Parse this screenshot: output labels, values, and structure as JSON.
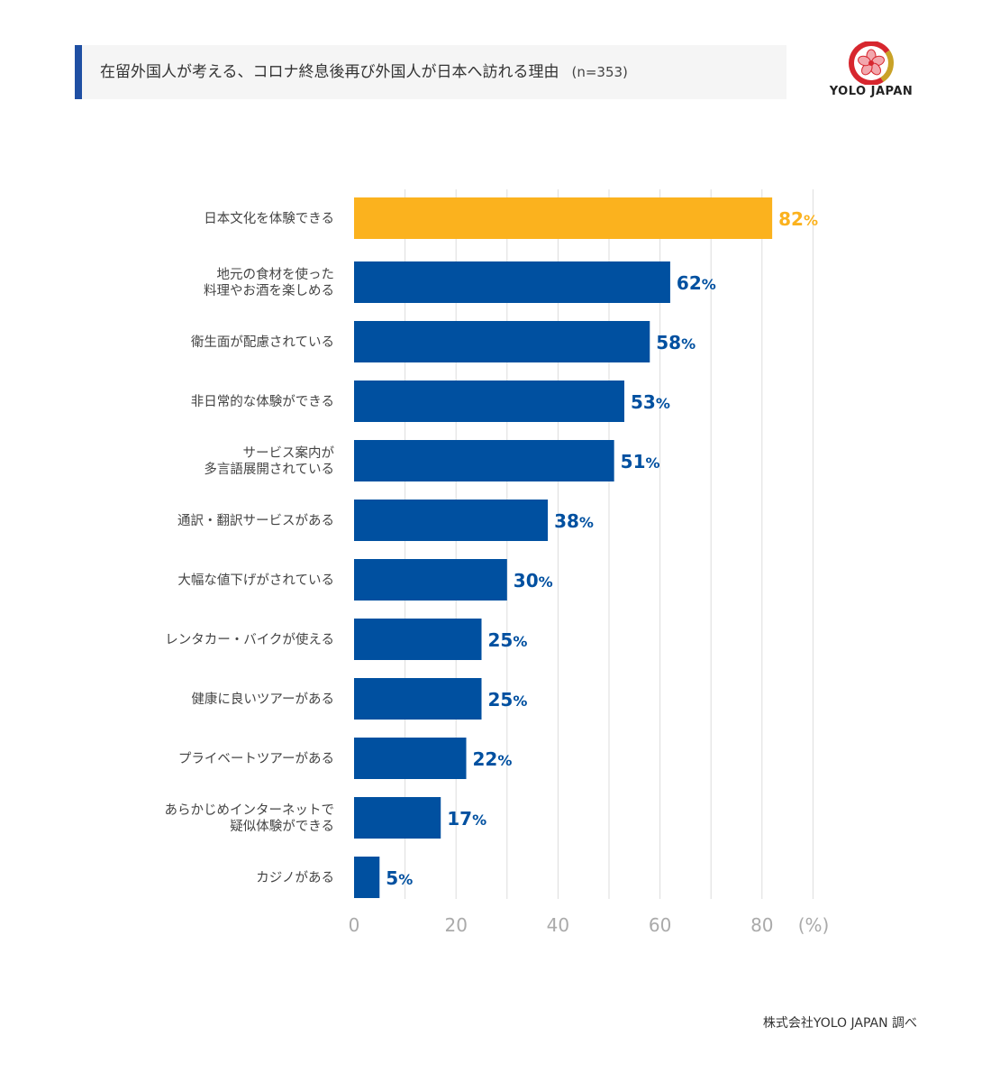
{
  "header": {
    "title": "在留外国人が考える、コロナ終息後再び外国人が日本へ訪れる理由",
    "note": "(n=353)"
  },
  "logo": {
    "text": "YOLO JAPAN",
    "icon": "cherry-blossom-circle-icon"
  },
  "footer": {
    "source": "株式会社YOLO JAPAN 調べ"
  },
  "colors": {
    "highlight": "#FBB21E",
    "bar": "#0050A0",
    "grid": "#dddddd",
    "tick": "#aaaaaa",
    "label": "#444444"
  },
  "chart_data": {
    "type": "bar",
    "orientation": "horizontal",
    "categories": [
      "日本文化を体験できる",
      "地元の食材を使った\n料理やお酒を楽しめる",
      "衛生面が配慮されている",
      "非日常的な体験ができる",
      "サービス案内が\n多言語展開されている",
      "通訳・翻訳サービスがある",
      "大幅な値下げがされている",
      "レンタカー・バイクが使える",
      "健康に良いツアーがある",
      "プライベートツアーがある",
      "あらかじめインターネットで\n疑似体験ができる",
      "カジノがある"
    ],
    "values": [
      82,
      62,
      58,
      53,
      51,
      38,
      30,
      25,
      25,
      22,
      17,
      5
    ],
    "value_suffix": "%",
    "highlight_index": 0,
    "xlim": [
      0,
      90
    ],
    "xticks": [
      0,
      20,
      40,
      60,
      80
    ],
    "x_unit_label": "(%)",
    "grid": true
  }
}
